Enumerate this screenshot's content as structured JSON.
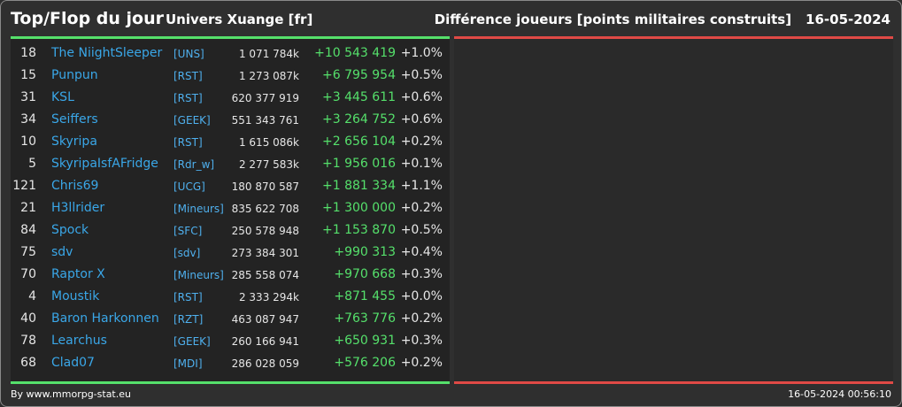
{
  "header": {
    "title": "Top/Flop du jour",
    "univers": "Univers Xuange [fr]",
    "subtitle": "Différence joueurs [points militaires construits]",
    "date": "16-05-2024"
  },
  "colors": {
    "positive": "#55e06b",
    "negative": "#e04a46",
    "link": "#3aa7e8"
  },
  "top": [
    {
      "rank": "18",
      "name": "The NiightSleeper",
      "alliance": "[UNS]",
      "points": "1 071 784k",
      "diff": "+10 543 419",
      "pct": "+1.0%"
    },
    {
      "rank": "15",
      "name": "Punpun",
      "alliance": "[RST]",
      "points": "1 273 087k",
      "diff": "+6 795 954",
      "pct": "+0.5%"
    },
    {
      "rank": "31",
      "name": "KSL",
      "alliance": "[RST]",
      "points": "620 377 919",
      "diff": "+3 445 611",
      "pct": "+0.6%"
    },
    {
      "rank": "34",
      "name": "Seiffers",
      "alliance": "[GEEK]",
      "points": "551 343 761",
      "diff": "+3 264 752",
      "pct": "+0.6%"
    },
    {
      "rank": "10",
      "name": "Skyripa",
      "alliance": "[RST]",
      "points": "1 615 086k",
      "diff": "+2 656 104",
      "pct": "+0.2%"
    },
    {
      "rank": "5",
      "name": "SkyripaIsfAFridge",
      "alliance": "[Rdr_w]",
      "points": "2 277 583k",
      "diff": "+1 956 016",
      "pct": "+0.1%"
    },
    {
      "rank": "121",
      "name": "Chris69",
      "alliance": "[UCG]",
      "points": "180 870 587",
      "diff": "+1 881 334",
      "pct": "+1.1%"
    },
    {
      "rank": "21",
      "name": "H3llrider",
      "alliance": "[Mineurs]",
      "points": "835 622 708",
      "diff": "+1 300 000",
      "pct": "+0.2%"
    },
    {
      "rank": "84",
      "name": "Spock",
      "alliance": "[SFC]",
      "points": "250 578 948",
      "diff": "+1 153 870",
      "pct": "+0.5%"
    },
    {
      "rank": "75",
      "name": "sdv",
      "alliance": "[sdv]",
      "points": "273 384 301",
      "diff": "+990 313",
      "pct": "+0.4%"
    },
    {
      "rank": "70",
      "name": "Raptor X",
      "alliance": "[Mineurs]",
      "points": "285 558 074",
      "diff": "+970 668",
      "pct": "+0.3%"
    },
    {
      "rank": "4",
      "name": "Moustik",
      "alliance": "[RST]",
      "points": "2 333 294k",
      "diff": "+871 455",
      "pct": "+0.0%"
    },
    {
      "rank": "40",
      "name": "Baron Harkonnen",
      "alliance": "[RZT]",
      "points": "463 087 947",
      "diff": "+763 776",
      "pct": "+0.2%"
    },
    {
      "rank": "78",
      "name": "Learchus",
      "alliance": "[GEEK]",
      "points": "260 166 941",
      "diff": "+650 931",
      "pct": "+0.3%"
    },
    {
      "rank": "68",
      "name": "Clad07",
      "alliance": "[MDI]",
      "points": "286 028 059",
      "diff": "+576 206",
      "pct": "+0.2%"
    }
  ],
  "footer": {
    "source": "By www.mmorpg-stat.eu",
    "timestamp": "16-05-2024 00:56:10"
  }
}
